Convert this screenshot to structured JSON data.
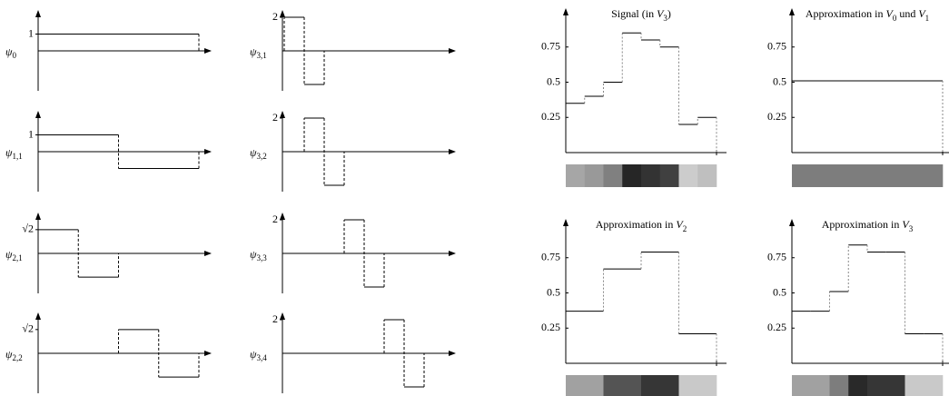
{
  "wavelets": [
    {
      "symbol": "ψ",
      "index": "0",
      "tick": 1,
      "values": [
        1
      ]
    },
    {
      "symbol": "ψ",
      "index": "1,1",
      "tick": 1,
      "values": [
        1,
        -1
      ]
    },
    {
      "symbol": "ψ",
      "index": "2,1",
      "tick": {
        "value": 1.4142,
        "label": "√2"
      },
      "values": [
        1.4142,
        -1.4142,
        0,
        0
      ]
    },
    {
      "symbol": "ψ",
      "index": "2,2",
      "tick": {
        "value": 1.4142,
        "label": "√2"
      },
      "values": [
        0,
        0,
        1.4142,
        -1.4142
      ]
    },
    {
      "symbol": "ψ",
      "index": "3,1",
      "tick": 2,
      "values": [
        2,
        -2,
        0,
        0,
        0,
        0,
        0,
        0
      ]
    },
    {
      "symbol": "ψ",
      "index": "3,2",
      "tick": 2,
      "values": [
        0,
        2,
        -2,
        0,
        0,
        0,
        0,
        0
      ]
    },
    {
      "symbol": "ψ",
      "index": "3,3",
      "tick": 2,
      "values": [
        0,
        0,
        0,
        2,
        -2,
        0,
        0,
        0
      ]
    },
    {
      "symbol": "ψ",
      "index": "3,4",
      "tick": 2,
      "values": [
        0,
        0,
        0,
        0,
        0,
        2,
        -2,
        0
      ]
    }
  ],
  "charts": [
    {
      "title": [
        {
          "text": "Signal (in "
        },
        {
          "text": "V",
          "style": "italic"
        },
        {
          "text": "3",
          "style": "sub"
        },
        {
          "text": ")"
        }
      ],
      "values": [
        0.35,
        0.4,
        0.5,
        0.85,
        0.8,
        0.75,
        0.2,
        0.25
      ]
    },
    {
      "title": [
        {
          "text": "Approximation in "
        },
        {
          "text": "V",
          "style": "italic"
        },
        {
          "text": "0",
          "style": "sub"
        },
        {
          "text": " und "
        },
        {
          "text": "V",
          "style": "italic"
        },
        {
          "text": "1",
          "style": "sub"
        }
      ],
      "values": [
        0.51
      ]
    },
    {
      "title": [
        {
          "text": "Approximation in "
        },
        {
          "text": "V",
          "style": "italic"
        },
        {
          "text": "2",
          "style": "sub"
        }
      ],
      "values": [
        0.37,
        0.67,
        0.79,
        0.21
      ]
    },
    {
      "title": [
        {
          "text": "Approximation in "
        },
        {
          "text": "V",
          "style": "italic"
        },
        {
          "text": "3",
          "style": "sub"
        }
      ],
      "values": [
        0.37,
        0.37,
        0.51,
        0.84,
        0.79,
        0.79,
        0.21,
        0.21
      ]
    }
  ],
  "yticks": [
    0.25,
    0.5,
    0.75
  ]
}
